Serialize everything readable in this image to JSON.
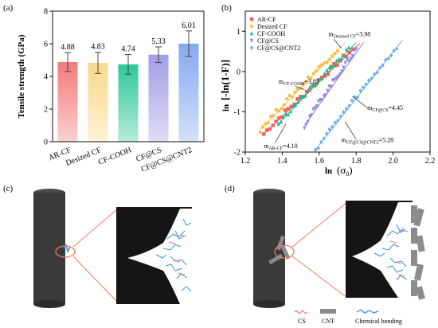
{
  "panels": {
    "a": "(a)",
    "b": "(b)",
    "c": "(c)",
    "d": "(d)"
  },
  "chart_data": [
    {
      "type": "bar",
      "categories": [
        "AR-CF",
        "Desized CF",
        "CF-COOH",
        "CF@CS",
        "CF@CS@CNT2"
      ],
      "values": [
        4.88,
        4.83,
        4.74,
        5.33,
        6.01
      ],
      "errors": [
        0.58,
        0.65,
        0.6,
        0.48,
        0.78
      ],
      "value_labels": [
        "4.88",
        "4.83",
        "4.74",
        "5.33",
        "6.01"
      ],
      "colors": [
        "#f47a78",
        "#f9d98a",
        "#2fc79a",
        "#a29ee6",
        "#84a9f0"
      ],
      "ylabel": "Tensile strength (GPa)",
      "ylim": [
        0,
        8
      ],
      "yticks": [
        0,
        2,
        4,
        6,
        8
      ],
      "ytick_labels": [
        "0",
        "2",
        "4",
        "6",
        "8"
      ],
      "grid": false
    },
    {
      "type": "scatter",
      "xlabel_main": "ln",
      "xlabel_arg": "(σ",
      "xlabel_sub": "0",
      "xlabel_close": ")",
      "ylabel_main": "ln",
      "ylabel_arg": "[-ln(1-F)]",
      "xlim": [
        1.2,
        2.2
      ],
      "ylim": [
        -2,
        1.5
      ],
      "xticks": [
        1.2,
        1.4,
        1.6,
        1.8,
        2.0,
        2.2
      ],
      "xtick_labels": [
        "1.2",
        "1.4",
        "1.6",
        "1.8",
        "2.0",
        "2.2"
      ],
      "yticks": [
        -2,
        -1,
        0,
        1
      ],
      "ytick_labels": [
        "-2",
        "-1",
        "0",
        "1"
      ],
      "legend_position": "top-left",
      "series": [
        {
          "name": "AR-CF",
          "marker": "square",
          "color": "#f0605a",
          "x_range": [
            1.3,
            1.78
          ],
          "y_range": [
            -1.55,
            0.55
          ],
          "fit_end": [
            1.82,
            0.7
          ]
        },
        {
          "name": "Desized CF",
          "marker": "circle",
          "color": "#f4c247",
          "x_range": [
            1.28,
            1.7
          ],
          "y_range": [
            -1.45,
            0.55
          ],
          "fit_end": [
            1.74,
            0.72
          ]
        },
        {
          "name": "CF-COOH",
          "marker": "triangle",
          "color": "#1db88a",
          "x_range": [
            1.38,
            1.76
          ],
          "y_range": [
            -1.3,
            0.55
          ],
          "fit_end": [
            1.8,
            0.72
          ]
        },
        {
          "name": "CF@CS",
          "marker": "triangle-down",
          "color": "#8f86e0",
          "x_range": [
            1.52,
            1.8
          ],
          "y_range": [
            -1.35,
            0.55
          ],
          "fit_end": [
            1.84,
            0.72
          ]
        },
        {
          "name": "CF@CS@CNT2",
          "marker": "diamond",
          "color": "#6aaee8",
          "x_range": [
            1.58,
            2.02
          ],
          "y_range": [
            -1.95,
            0.6
          ],
          "fit_end": [
            2.05,
            0.78
          ]
        }
      ],
      "annotations": [
        {
          "main": "m",
          "sub": "Desized CF",
          "value": "=3.98",
          "x": 1.65,
          "y": 0.88
        },
        {
          "main": "m",
          "sub": "CF-COOH",
          "value": "=3.85",
          "x": 1.38,
          "y": -0.3
        },
        {
          "main": "m",
          "sub": "CF@CS",
          "value": "=4.45",
          "x": 1.86,
          "y": -0.95
        },
        {
          "main": "m",
          "sub": "AR-CF",
          "value": "=4.10",
          "x": 1.3,
          "y": -1.9
        },
        {
          "main": "m",
          "sub": "CF@CS@CNT2",
          "value": "=5.28",
          "x": 1.72,
          "y": -1.75
        }
      ]
    }
  ],
  "legend_bottom": {
    "cs": "CS",
    "cnt": "CNT",
    "bond": "Chemical bonding"
  }
}
